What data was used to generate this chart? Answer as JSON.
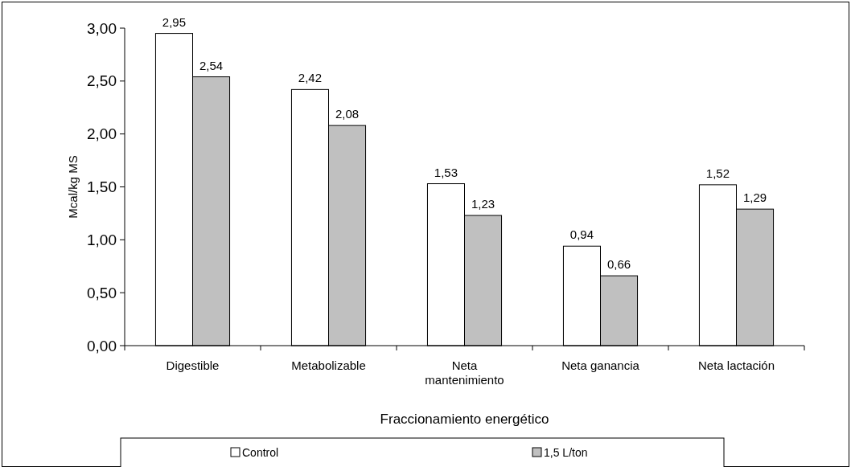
{
  "chart_data": {
    "type": "bar",
    "xlabel": "Fraccionamiento energético",
    "ylabel": "Mcal/kg MS",
    "categories": [
      "Digestible",
      "Metabolizable",
      "Neta mantenimiento",
      "Neta ganancia",
      "Neta lactación"
    ],
    "series": [
      {
        "name": "Control",
        "color": "#ffffff",
        "values": [
          2.95,
          2.42,
          1.53,
          0.94,
          1.52
        ],
        "value_labels": [
          "2,95",
          "2,42",
          "1,53",
          "0,94",
          "1,52"
        ]
      },
      {
        "name": "1,5 L/ton",
        "color": "#c0c0c0",
        "values": [
          2.54,
          2.08,
          1.23,
          0.66,
          1.29
        ],
        "value_labels": [
          "2,54",
          "2,08",
          "1,23",
          "0,66",
          "1,29"
        ]
      }
    ],
    "ylim": [
      0,
      3
    ],
    "yticks": [
      {
        "value": 0,
        "label": "0,00"
      },
      {
        "value": 0.5,
        "label": "0,50"
      },
      {
        "value": 1,
        "label": "1,00"
      },
      {
        "value": 1.5,
        "label": "1,50"
      },
      {
        "value": 2,
        "label": "2,00"
      },
      {
        "value": 2.5,
        "label": "2,50"
      },
      {
        "value": 3,
        "label": "3,00"
      }
    ],
    "grid": false,
    "legend": "bottom"
  }
}
